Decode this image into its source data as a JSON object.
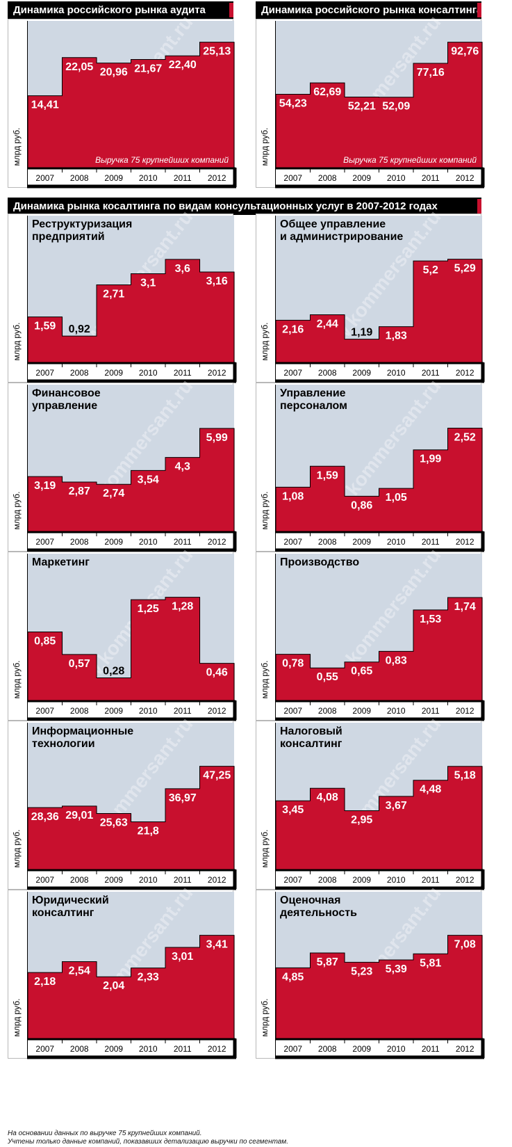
{
  "charts_top_title_left": "Динамика российского рынка аудита",
  "charts_top_title_right": "Динамика российского рынка консалтинга",
  "section_title": "Динамика рынка косалтинга по видам консультационных услуг в 2007-2012 годах",
  "years": [
    "2007",
    "2008",
    "2009",
    "2010",
    "2011",
    "2012"
  ],
  "unit_label": "млрд руб.",
  "revenue_note": "Выручка 75 крупнейших компаний",
  "watermark": "www.kommersant.ru",
  "footnotes": [
    "На основании данных по выручке 75 крупнейших компаний.",
    "Учтены только данные компаний, показавших детализацию выручки по сегментам."
  ],
  "colors": {
    "bar": "#c8102e",
    "plot_bg": "#cfd8e3",
    "frame": "#000000",
    "label_dark": "#000000",
    "label_light": "#ffffff"
  },
  "chart_data": [
    {
      "type": "bar",
      "title": "Динамика российского рынка аудита",
      "categories": [
        "2007",
        "2008",
        "2009",
        "2010",
        "2011",
        "2012"
      ],
      "values": [
        14.41,
        22.05,
        20.96,
        21.67,
        22.4,
        25.13
      ],
      "labels": [
        "14,41",
        "22,05",
        "20,96",
        "21,67",
        "22,40",
        "25,13"
      ],
      "ylabel": "млрд руб.",
      "annotation": "Выручка 75 крупнейших компаний",
      "ylim": [
        0,
        29.4
      ]
    },
    {
      "type": "bar",
      "title": "Динамика российского рынка консалтинга",
      "categories": [
        "2007",
        "2008",
        "2009",
        "2010",
        "2011",
        "2012"
      ],
      "values": [
        54.23,
        62.69,
        52.21,
        52.09,
        77.16,
        92.76
      ],
      "labels": [
        "54,23",
        "62,69",
        "52,21",
        "52,09",
        "77,16",
        "92,76"
      ],
      "ylabel": "млрд руб.",
      "annotation": "Выручка 75 крупнейших компаний",
      "ylim": [
        0,
        108.5
      ]
    },
    {
      "type": "bar",
      "title": "Реструктуризация предприятий",
      "title_lines": [
        "Реструктуризация",
        "предприятий"
      ],
      "categories": [
        "2007",
        "2008",
        "2009",
        "2010",
        "2011",
        "2012"
      ],
      "values": [
        1.59,
        0.92,
        2.71,
        3.1,
        3.6,
        3.16
      ],
      "labels": [
        "1,59",
        "0,92",
        "2,71",
        "3,1",
        "3,6",
        "3,16"
      ],
      "ylabel": "млрд руб.",
      "ylim": [
        0,
        5.13
      ]
    },
    {
      "type": "bar",
      "title": "Общее управление и администрирование",
      "title_lines": [
        "Общее управление",
        "и администрирование"
      ],
      "categories": [
        "2007",
        "2008",
        "2009",
        "2010",
        "2011",
        "2012"
      ],
      "values": [
        2.16,
        2.44,
        1.19,
        1.83,
        5.2,
        5.29
      ],
      "labels": [
        "2,16",
        "2,44",
        "1,19",
        "1,83",
        "5,2",
        "5,29"
      ],
      "ylabel": "млрд руб.",
      "ylim": [
        0,
        7.52
      ]
    },
    {
      "type": "bar",
      "title": "Финансовое управление",
      "title_lines": [
        "Финансовое",
        "управление"
      ],
      "categories": [
        "2007",
        "2008",
        "2009",
        "2010",
        "2011",
        "2012"
      ],
      "values": [
        3.19,
        2.87,
        2.74,
        3.54,
        4.3,
        5.99
      ],
      "labels": [
        "3,19",
        "2,87",
        "2,74",
        "3,54",
        "4,3",
        "5,99"
      ],
      "ylabel": "млрд руб.",
      "ylim": [
        0,
        8.53
      ]
    },
    {
      "type": "bar",
      "title": "Управление персоналом",
      "title_lines": [
        "Управление",
        "персоналом"
      ],
      "categories": [
        "2007",
        "2008",
        "2009",
        "2010",
        "2011",
        "2012"
      ],
      "values": [
        1.08,
        1.59,
        0.86,
        1.05,
        1.99,
        2.52
      ],
      "labels": [
        "1,08",
        "1,59",
        "0,86",
        "1,05",
        "1,99",
        "2,52"
      ],
      "ylabel": "млрд руб.",
      "ylim": [
        0,
        3.58
      ]
    },
    {
      "type": "bar",
      "title": "Маркетинг",
      "title_lines": [
        "Маркетинг"
      ],
      "categories": [
        "2007",
        "2008",
        "2009",
        "2010",
        "2011",
        "2012"
      ],
      "values": [
        0.85,
        0.57,
        0.28,
        1.25,
        1.28,
        0.46
      ],
      "labels": [
        "0,85",
        "0,57",
        "0,28",
        "1,25",
        "1,28",
        "0,46"
      ],
      "ylabel": "млрд руб.",
      "ylim": [
        0,
        1.82
      ]
    },
    {
      "type": "bar",
      "title": "Производство",
      "title_lines": [
        "Производство"
      ],
      "categories": [
        "2007",
        "2008",
        "2009",
        "2010",
        "2011",
        "2012"
      ],
      "values": [
        0.78,
        0.55,
        0.65,
        0.83,
        1.53,
        1.74
      ],
      "labels": [
        "0,78",
        "0,55",
        "0,65",
        "0,83",
        "1,53",
        "1,74"
      ],
      "ylabel": "млрд руб.",
      "ylim": [
        0,
        2.48
      ]
    },
    {
      "type": "bar",
      "title": "Информационные технологии",
      "title_lines": [
        "Информационные",
        "технологии"
      ],
      "categories": [
        "2007",
        "2008",
        "2009",
        "2010",
        "2011",
        "2012"
      ],
      "values": [
        28.36,
        29.01,
        25.63,
        21.8,
        36.97,
        47.25
      ],
      "labels": [
        "28,36",
        "29,01",
        "25,63",
        "21,8",
        "36,97",
        "47,25"
      ],
      "ylabel": "млрд руб.",
      "ylim": [
        0,
        67.2
      ]
    },
    {
      "type": "bar",
      "title": "Налоговый консалтинг",
      "title_lines": [
        "Налоговый",
        "консалтинг"
      ],
      "categories": [
        "2007",
        "2008",
        "2009",
        "2010",
        "2011",
        "2012"
      ],
      "values": [
        3.45,
        4.08,
        2.95,
        3.67,
        4.48,
        5.18
      ],
      "labels": [
        "3,45",
        "4,08",
        "2,95",
        "3,67",
        "4,48",
        "5,18"
      ],
      "ylabel": "млрд руб.",
      "ylim": [
        0,
        7.37
      ]
    },
    {
      "type": "bar",
      "title": "Юридический консалтинг",
      "title_lines": [
        "Юридический",
        "консалтинг"
      ],
      "categories": [
        "2007",
        "2008",
        "2009",
        "2010",
        "2011",
        "2012"
      ],
      "values": [
        2.18,
        2.54,
        2.04,
        2.33,
        3.01,
        3.41
      ],
      "labels": [
        "2,18",
        "2,54",
        "2,04",
        "2,33",
        "3,01",
        "3,41"
      ],
      "ylabel": "млрд руб.",
      "ylim": [
        0,
        4.85
      ]
    },
    {
      "type": "bar",
      "title": "Оценочная деятельность",
      "title_lines": [
        "Оценочная",
        "деятельность"
      ],
      "categories": [
        "2007",
        "2008",
        "2009",
        "2010",
        "2011",
        "2012"
      ],
      "values": [
        4.85,
        5.87,
        5.23,
        5.39,
        5.81,
        7.08
      ],
      "labels": [
        "4,85",
        "5,87",
        "5,23",
        "5,39",
        "5,81",
        "7,08"
      ],
      "ylabel": "млрд руб.",
      "ylim": [
        0,
        10.07
      ]
    }
  ]
}
